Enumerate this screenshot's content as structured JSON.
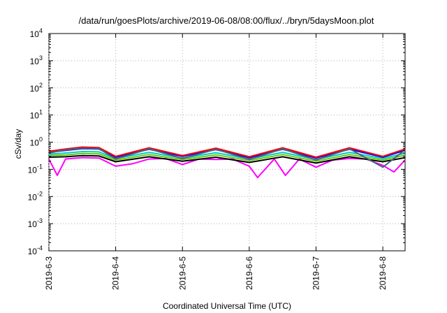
{
  "chart_data": {
    "type": "line",
    "title": "/data/run/goesPlots/archive/2019-06-08/08:00/flux/../bryn/5daysMoon.plot",
    "xlabel": "Coordinated Universal Time (UTC)",
    "ylabel": "cSv/day",
    "yscale": "log",
    "ylim": [
      0.0001,
      10000
    ],
    "xlim": [
      "2019-06-03 00:00",
      "2019-06-08 08:00"
    ],
    "grid": true,
    "x_ticks": [
      "2019-6-3",
      "2019-6-4",
      "2019-6-5",
      "2019-6-6",
      "2019-6-7",
      "2019-6-8"
    ],
    "y_ticks": [
      {
        "value": 0.0001,
        "base": "10",
        "exp": "-4"
      },
      {
        "value": 0.001,
        "base": "10",
        "exp": "-3"
      },
      {
        "value": 0.01,
        "base": "10",
        "exp": "-2"
      },
      {
        "value": 0.1,
        "base": "10",
        "exp": "-1"
      },
      {
        "value": 1,
        "base": "10",
        "exp": "0"
      },
      {
        "value": 10,
        "base": "10",
        "exp": "1"
      },
      {
        "value": 100,
        "base": "10",
        "exp": "2"
      },
      {
        "value": 1000,
        "base": "10",
        "exp": "3"
      },
      {
        "value": 10000,
        "base": "10",
        "exp": "4"
      }
    ],
    "colors": [
      "#ff00ff",
      "#000000",
      "#66cc00",
      "#00cccc",
      "#0000ff",
      "#ff0000",
      "#4d6080"
    ],
    "series": [
      {
        "color": "#ff00ff",
        "values": [
          {
            "x": "2019-06-03 00:00",
            "y": 0.24
          },
          {
            "x": "2019-06-03 03:00",
            "y": 0.06
          },
          {
            "x": "2019-06-03 06:00",
            "y": 0.24
          },
          {
            "x": "2019-06-03 12:00",
            "y": 0.27
          },
          {
            "x": "2019-06-03 18:00",
            "y": 0.26
          },
          {
            "x": "2019-06-04 00:00",
            "y": 0.13
          },
          {
            "x": "2019-06-04 06:00",
            "y": 0.16
          },
          {
            "x": "2019-06-04 12:00",
            "y": 0.24
          },
          {
            "x": "2019-06-04 18:00",
            "y": 0.25
          },
          {
            "x": "2019-06-05 00:00",
            "y": 0.15
          },
          {
            "x": "2019-06-05 06:00",
            "y": 0.24
          },
          {
            "x": "2019-06-05 12:00",
            "y": 0.23
          },
          {
            "x": "2019-06-05 18:00",
            "y": 0.24
          },
          {
            "x": "2019-06-06 00:00",
            "y": 0.13
          },
          {
            "x": "2019-06-06 03:00",
            "y": 0.05
          },
          {
            "x": "2019-06-06 09:00",
            "y": 0.24
          },
          {
            "x": "2019-06-06 13:00",
            "y": 0.06
          },
          {
            "x": "2019-06-06 18:00",
            "y": 0.24
          },
          {
            "x": "2019-06-07 00:00",
            "y": 0.12
          },
          {
            "x": "2019-06-07 06:00",
            "y": 0.22
          },
          {
            "x": "2019-06-07 12:00",
            "y": 0.25
          },
          {
            "x": "2019-06-07 18:00",
            "y": 0.24
          },
          {
            "x": "2019-06-08 00:00",
            "y": 0.14
          },
          {
            "x": "2019-06-08 04:00",
            "y": 0.08
          },
          {
            "x": "2019-06-08 08:00",
            "y": 0.22
          }
        ]
      },
      {
        "color": "#000000",
        "values": [
          {
            "x": "2019-06-03 00:00",
            "y": 0.28
          },
          {
            "x": "2019-06-03 06:00",
            "y": 0.29
          },
          {
            "x": "2019-06-03 12:00",
            "y": 0.32
          },
          {
            "x": "2019-06-03 18:00",
            "y": 0.31
          },
          {
            "x": "2019-06-04 00:00",
            "y": 0.19
          },
          {
            "x": "2019-06-04 12:00",
            "y": 0.29
          },
          {
            "x": "2019-06-05 00:00",
            "y": 0.2
          },
          {
            "x": "2019-06-05 12:00",
            "y": 0.28
          },
          {
            "x": "2019-06-06 00:00",
            "y": 0.18
          },
          {
            "x": "2019-06-06 12:00",
            "y": 0.29
          },
          {
            "x": "2019-06-07 00:00",
            "y": 0.17
          },
          {
            "x": "2019-06-07 12:00",
            "y": 0.29
          },
          {
            "x": "2019-06-08 00:00",
            "y": 0.19
          },
          {
            "x": "2019-06-08 08:00",
            "y": 0.27
          }
        ]
      },
      {
        "color": "#66cc00",
        "values": [
          {
            "x": "2019-06-03 00:00",
            "y": 0.32
          },
          {
            "x": "2019-06-03 06:00",
            "y": 0.34
          },
          {
            "x": "2019-06-03 12:00",
            "y": 0.38
          },
          {
            "x": "2019-06-03 18:00",
            "y": 0.37
          },
          {
            "x": "2019-06-04 00:00",
            "y": 0.22
          },
          {
            "x": "2019-06-04 12:00",
            "y": 0.35
          },
          {
            "x": "2019-06-05 00:00",
            "y": 0.23
          },
          {
            "x": "2019-06-05 12:00",
            "y": 0.34
          },
          {
            "x": "2019-06-06 00:00",
            "y": 0.21
          },
          {
            "x": "2019-06-06 12:00",
            "y": 0.35
          },
          {
            "x": "2019-06-07 00:00",
            "y": 0.2
          },
          {
            "x": "2019-06-07 12:00",
            "y": 0.35
          },
          {
            "x": "2019-06-08 00:00",
            "y": 0.22
          },
          {
            "x": "2019-06-08 08:00",
            "y": 0.33
          }
        ]
      },
      {
        "color": "#00cccc",
        "values": [
          {
            "x": "2019-06-03 00:00",
            "y": 0.36
          },
          {
            "x": "2019-06-03 06:00",
            "y": 0.4
          },
          {
            "x": "2019-06-03 12:00",
            "y": 0.45
          },
          {
            "x": "2019-06-03 18:00",
            "y": 0.44
          },
          {
            "x": "2019-06-04 00:00",
            "y": 0.25
          },
          {
            "x": "2019-06-04 12:00",
            "y": 0.42
          },
          {
            "x": "2019-06-05 00:00",
            "y": 0.26
          },
          {
            "x": "2019-06-05 12:00",
            "y": 0.41
          },
          {
            "x": "2019-06-06 00:00",
            "y": 0.24
          },
          {
            "x": "2019-06-06 12:00",
            "y": 0.42
          },
          {
            "x": "2019-06-07 00:00",
            "y": 0.23
          },
          {
            "x": "2019-06-07 12:00",
            "y": 0.42
          },
          {
            "x": "2019-06-08 00:00",
            "y": 0.25
          },
          {
            "x": "2019-06-08 08:00",
            "y": 0.39
          }
        ]
      },
      {
        "color": "#0000ff",
        "values": [
          {
            "x": "2019-06-03 00:00",
            "y": 0.42
          },
          {
            "x": "2019-06-03 06:00",
            "y": 0.5
          },
          {
            "x": "2019-06-03 12:00",
            "y": 0.58
          },
          {
            "x": "2019-06-03 18:00",
            "y": 0.56
          },
          {
            "x": "2019-06-04 00:00",
            "y": 0.28
          },
          {
            "x": "2019-06-04 12:00",
            "y": 0.55
          },
          {
            "x": "2019-06-05 00:00",
            "y": 0.3
          },
          {
            "x": "2019-06-05 12:00",
            "y": 0.53
          },
          {
            "x": "2019-06-06 00:00",
            "y": 0.27
          },
          {
            "x": "2019-06-06 12:00",
            "y": 0.55
          },
          {
            "x": "2019-06-07 00:00",
            "y": 0.26
          },
          {
            "x": "2019-06-07 12:00",
            "y": 0.55
          },
          {
            "x": "2019-06-08 00:00",
            "y": 0.28
          },
          {
            "x": "2019-06-08 08:00",
            "y": 0.5
          }
        ]
      },
      {
        "color": "#ff0000",
        "values": [
          {
            "x": "2019-06-03 00:00",
            "y": 0.46
          },
          {
            "x": "2019-06-03 06:00",
            "y": 0.56
          },
          {
            "x": "2019-06-03 12:00",
            "y": 0.66
          },
          {
            "x": "2019-06-03 18:00",
            "y": 0.63
          },
          {
            "x": "2019-06-04 00:00",
            "y": 0.3
          },
          {
            "x": "2019-06-04 12:00",
            "y": 0.62
          },
          {
            "x": "2019-06-05 00:00",
            "y": 0.32
          },
          {
            "x": "2019-06-05 12:00",
            "y": 0.6
          },
          {
            "x": "2019-06-06 00:00",
            "y": 0.29
          },
          {
            "x": "2019-06-06 12:00",
            "y": 0.62
          },
          {
            "x": "2019-06-07 00:00",
            "y": 0.28
          },
          {
            "x": "2019-06-07 12:00",
            "y": 0.62
          },
          {
            "x": "2019-06-08 00:00",
            "y": 0.3
          },
          {
            "x": "2019-06-08 08:00",
            "y": 0.56
          }
        ]
      },
      {
        "color": "#4d6080",
        "values": [
          {
            "x": "2019-06-03 00:00",
            "y": 0.4
          },
          {
            "x": "2019-06-03 06:00",
            "y": 0.52
          },
          {
            "x": "2019-06-03 12:00",
            "y": 0.6
          },
          {
            "x": "2019-06-03 18:00",
            "y": 0.58
          },
          {
            "x": "2019-06-04 00:00",
            "y": 0.24
          },
          {
            "x": "2019-06-04 12:00",
            "y": 0.57
          },
          {
            "x": "2019-06-05 00:00",
            "y": 0.25
          },
          {
            "x": "2019-06-05 12:00",
            "y": 0.55
          },
          {
            "x": "2019-06-06 00:00",
            "y": 0.23
          },
          {
            "x": "2019-06-06 12:00",
            "y": 0.57
          },
          {
            "x": "2019-06-07 00:00",
            "y": 0.22
          },
          {
            "x": "2019-06-07 12:00",
            "y": 0.57
          },
          {
            "x": "2019-06-08 00:00",
            "y": 0.12
          },
          {
            "x": "2019-06-08 08:00",
            "y": 0.52
          }
        ]
      }
    ]
  }
}
